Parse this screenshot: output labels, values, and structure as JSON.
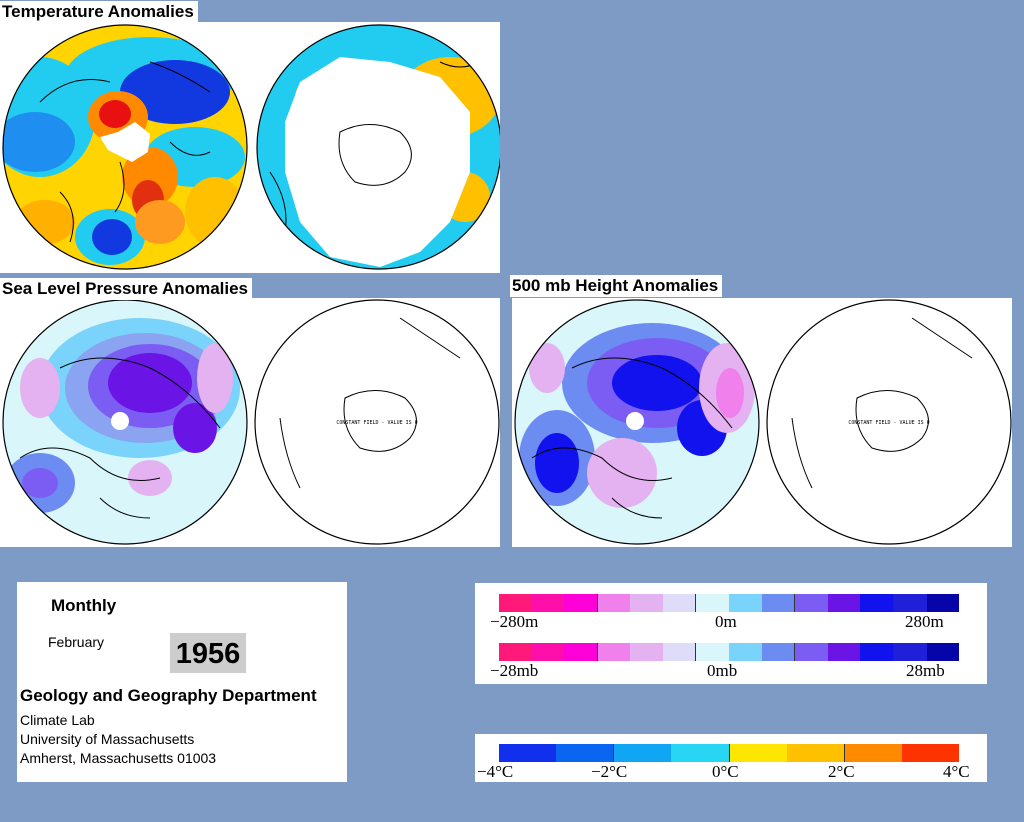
{
  "panels": {
    "temperature": {
      "title": "Temperature Anomalies"
    },
    "slp": {
      "title": "Sea Level Pressure Anomalies",
      "constant_field": "CONSTANT FIELD - VALUE IS 0"
    },
    "h500": {
      "title": "500 mb Height Anomalies",
      "constant_field": "CONSTANT FIELD - VALUE IS 0"
    }
  },
  "info": {
    "period": "Monthly",
    "month": "February",
    "year": "1956",
    "department": "Geology and Geography Department",
    "lab": "Climate Lab",
    "university": "University of Massachusetts",
    "address": "Amherst, Massachusetts 01003"
  },
  "legends": {
    "height": {
      "labels": [
        "−280m",
        "0m",
        "280m"
      ],
      "colors": [
        "#ff1a7a",
        "#ff0faa",
        "#ff00d8",
        "#f080ec",
        "#e4b2f0",
        "#dedcf8",
        "#d9f6fa",
        "#79d3fa",
        "#6c8cf2",
        "#7b5df3",
        "#6a14e6",
        "#1212ee",
        "#2020d8",
        "#0606a8"
      ]
    },
    "pressure": {
      "labels": [
        "−28mb",
        "0mb",
        "28mb"
      ],
      "colors": [
        "#ff1a7a",
        "#ff0faa",
        "#ff00d8",
        "#f080ec",
        "#e4b2f0",
        "#dedcf8",
        "#d9f6fa",
        "#79d3fa",
        "#6c8cf2",
        "#7b5df3",
        "#6a14e6",
        "#1212ee",
        "#2020d8",
        "#0606a8"
      ]
    },
    "temperature": {
      "labels": [
        "−4°C",
        "−2°C",
        "0°C",
        "2°C",
        "4°C"
      ],
      "colors": [
        "#1030ee",
        "#0a66f0",
        "#10a6f4",
        "#28d6f4",
        "#ffe600",
        "#ffc000",
        "#ff8a00",
        "#ff3300"
      ]
    }
  }
}
